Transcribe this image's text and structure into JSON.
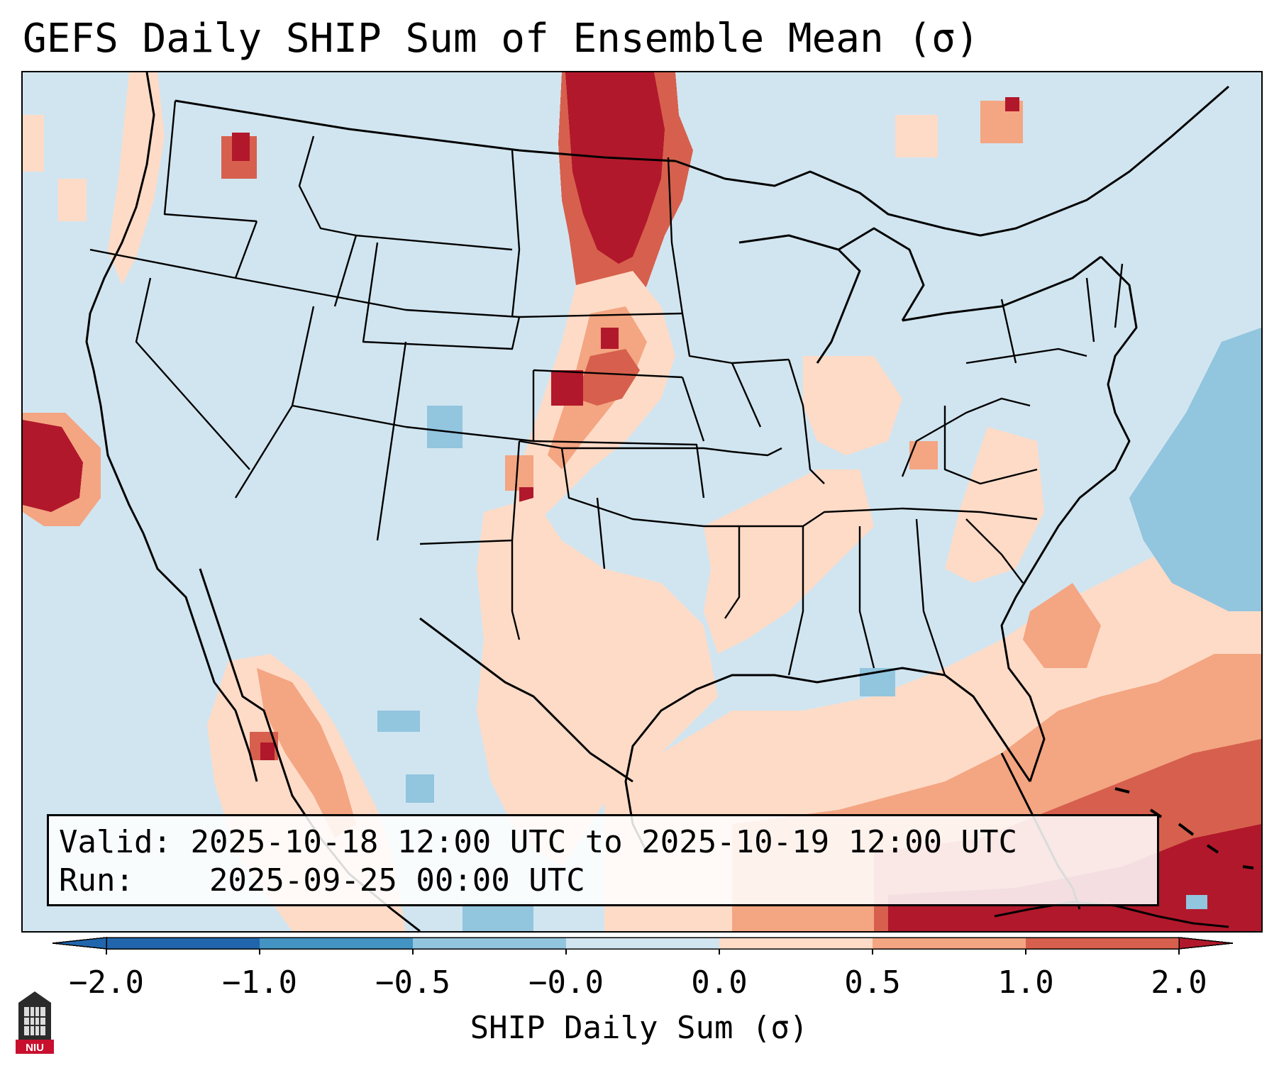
{
  "title": "GEFS Daily SHIP Sum of Ensemble Mean (σ)",
  "info": {
    "valid_label": "Valid:",
    "valid_value": "2025-10-18 12:00 UTC to 2025-10-19 12:00 UTC",
    "run_label": "Run:",
    "run_value": "2025-09-25 00:00 UTC"
  },
  "colorbar": {
    "label": "SHIP Daily Sum (σ)",
    "ticks": [
      "−2.0",
      "−1.0",
      "−0.5",
      "−0.0",
      "0.0",
      "0.5",
      "1.0",
      "2.0"
    ],
    "colors": [
      "#2166ac",
      "#4393c3",
      "#92c5de",
      "#d1e5f0",
      "#f7f7f7",
      "#fddbc7",
      "#f4a582",
      "#d6604d",
      "#b2182b"
    ]
  },
  "logo_text": "NIU",
  "map": {
    "background_color": "#d1e5f0",
    "coastline_color": "#000000",
    "highlights": [
      "Strong positive anomaly over southern Saskatchewan and North Dakota extending south through the Plains",
      "Positive anomalies over the Gulf of Mexico, Caribbean and western Atlantic",
      "Negative anomaly over the western Atlantic off the Northeast coast"
    ]
  }
}
